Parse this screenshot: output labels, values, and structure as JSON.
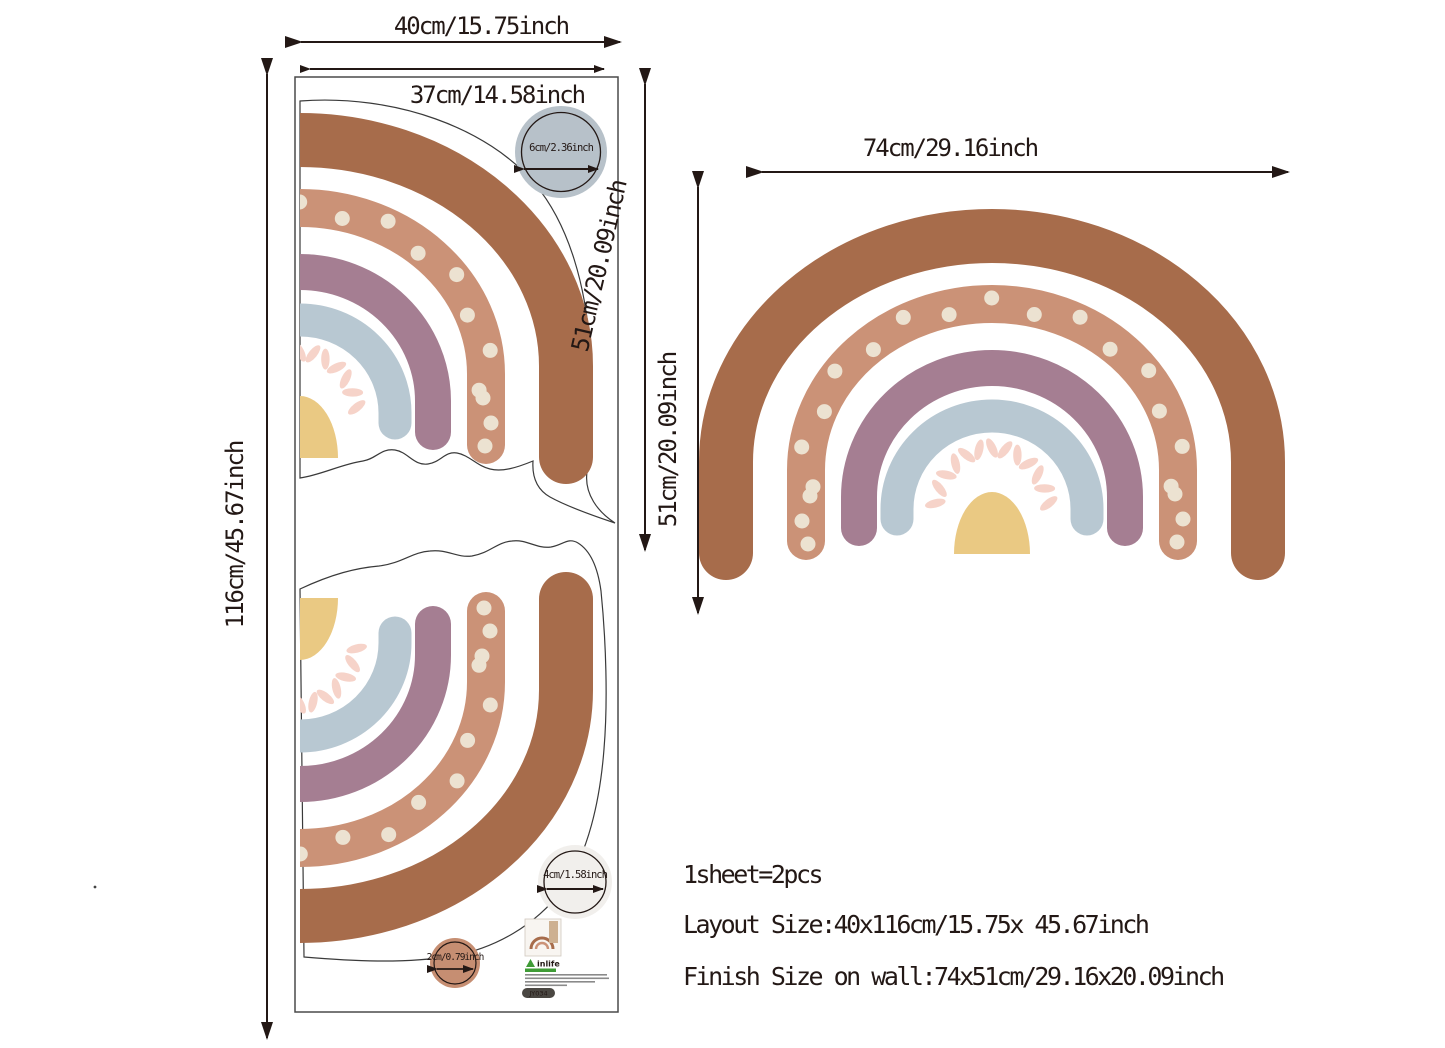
{
  "dims": {
    "sheet_width": "40cm/15.75inch",
    "piece_width": "37cm/14.58inch",
    "sheet_height": "116cm/45.67inch",
    "piece_height": "51cm/20.09inch",
    "wall_width": "74cm/29.16inch",
    "wall_height": "51cm/20.09inch",
    "circle_large": "6cm/2.36inch",
    "circle_medium": "4cm/1.58inch",
    "circle_small": "2cm/0.79inch"
  },
  "info": {
    "line1": "1sheet=2pcs",
    "line2": "Layout Size:40x116cm/15.75x 45.67inch",
    "line3": "Finish Size on wall:74x51cm/29.16x20.09inch"
  },
  "label": {
    "brand": "inlife",
    "code": "JY034"
  },
  "colors": {
    "brown": "#a76c4b",
    "polka": "#cb9277",
    "cream": "#ece2d1",
    "mauve": "#a57e92",
    "blue": "#b8c8d2",
    "pink": "#f6d3c9",
    "dome": "#eac983",
    "gray_circle": "#b7c1c9",
    "circle4": "#f1efec",
    "circle2": "#c68e72",
    "ink": "#231815",
    "cutline": "#3a3a3a",
    "green": "#3f9b36",
    "badge_bg": "#4a4742"
  }
}
